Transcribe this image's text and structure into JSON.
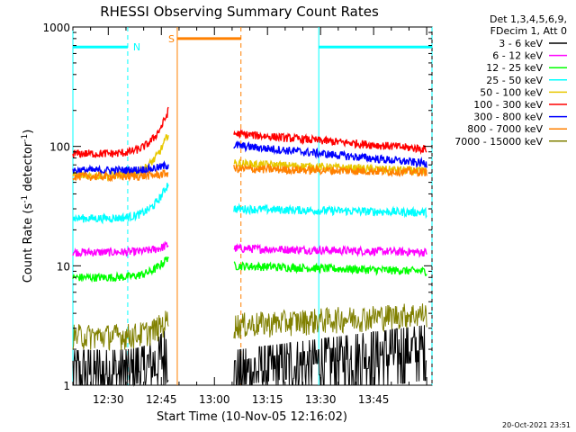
{
  "chart_data": {
    "type": "line",
    "title": "RHESSI Observing Summary Count Rates",
    "xlabel": "Start Time (10-Nov-05 12:16:02)",
    "ylabel_main": "Count Rate (s",
    "ylabel_sup1": "-1",
    "ylabel_mid": " detector",
    "ylabel_sup2": "-1",
    "ylabel_end": ")",
    "yscale": "log",
    "ylim": [
      1,
      1000
    ],
    "xlim_minutes_from_1220": [
      0,
      101.5
    ],
    "x_ticks": [
      {
        "label": "12:30",
        "minute": 10
      },
      {
        "label": "12:45",
        "minute": 25
      },
      {
        "label": "13:00",
        "minute": 40
      },
      {
        "label": "13:15",
        "minute": 55
      },
      {
        "label": "13:30",
        "minute": 70
      },
      {
        "label": "13:45",
        "minute": 85
      }
    ],
    "y_ticks": [
      {
        "label": "1",
        "value": 1
      },
      {
        "label": "10",
        "value": 10
      },
      {
        "label": "100",
        "value": 100
      },
      {
        "label": "1000",
        "value": 1000
      }
    ],
    "legend_header": [
      "Det 1,3,4,5,6,9,",
      "FDecim 1, Att 0"
    ],
    "gaps": [
      {
        "start": 27,
        "end": 45.5
      }
    ],
    "series": [
      {
        "name": "3 - 6 keV",
        "color": "#000000",
        "pre": [
          1.6,
          2.6
        ],
        "post": [
          1.6,
          2.6
        ],
        "noisy": true
      },
      {
        "name": "6 - 12 keV",
        "color": "#ff00ff",
        "pre": [
          13,
          15
        ],
        "post": [
          14,
          13
        ]
      },
      {
        "name": "12 - 25 keV",
        "color": "#00ff00",
        "pre": [
          8,
          12
        ],
        "post": [
          10,
          9
        ]
      },
      {
        "name": "25 - 50 keV",
        "color": "#00ffff",
        "pre": [
          25,
          50
        ],
        "post": [
          30,
          28
        ]
      },
      {
        "name": "50 - 100 keV",
        "color": "#e8c800",
        "pre": [
          57,
          130
        ],
        "post": [
          72,
          62
        ]
      },
      {
        "name": "100 - 300 keV",
        "color": "#ff0000",
        "pre": [
          87,
          200
        ],
        "post": [
          128,
          95
        ]
      },
      {
        "name": "300 - 800 keV",
        "color": "#0000ff",
        "pre": [
          63,
          70
        ],
        "post": [
          102,
          72
        ]
      },
      {
        "name": "800 - 7000 keV",
        "color": "#ff8000",
        "pre": [
          56,
          60
        ],
        "post": [
          65,
          61
        ]
      },
      {
        "name": "7000 - 15000 keV",
        "color": "#808000",
        "pre": [
          2.6,
          3.6
        ],
        "post": [
          3.2,
          4.0
        ],
        "noisy": true
      }
    ],
    "flags": [
      {
        "label": "N",
        "color": "#00ffff",
        "segments": [
          [
            0,
            15.5
          ],
          [
            69.5,
            101.5
          ]
        ],
        "level": 680,
        "vlines": [
          [
            0,
            "solid"
          ],
          [
            15.5,
            "dashed"
          ],
          [
            69.5,
            "solid"
          ],
          [
            101.5,
            "dashed"
          ]
        ]
      },
      {
        "label": "S",
        "color": "#ff8000",
        "segments": [
          [
            29.5,
            47.5
          ]
        ],
        "level": 800,
        "vlines": [
          [
            29.5,
            "solid"
          ],
          [
            47.5,
            "dashed"
          ]
        ]
      }
    ]
  },
  "footer_date": "20-Oct-2021 23:51"
}
